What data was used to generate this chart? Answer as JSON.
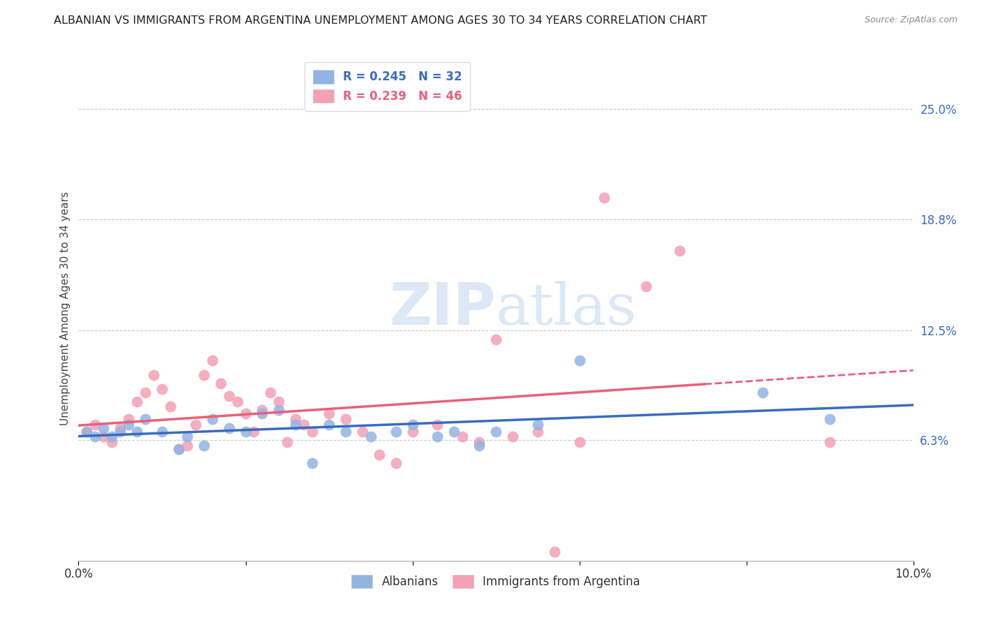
{
  "title": "ALBANIAN VS IMMIGRANTS FROM ARGENTINA UNEMPLOYMENT AMONG AGES 30 TO 34 YEARS CORRELATION CHART",
  "source": "Source: ZipAtlas.com",
  "ylabel": "Unemployment Among Ages 30 to 34 years",
  "xlim": [
    0,
    0.1
  ],
  "ylim": [
    -0.005,
    0.28
  ],
  "right_yticks": [
    0.063,
    0.125,
    0.188,
    0.25
  ],
  "right_yticklabels": [
    "6.3%",
    "12.5%",
    "18.8%",
    "25.0%"
  ],
  "albanian_color": "#92b4e3",
  "argentina_color": "#f4a0b5",
  "albanian_line_color": "#3a6cbf",
  "argentina_line_color": "#e8607a",
  "background_color": "#ffffff",
  "watermark_color": "#dce8f5",
  "grid_color": "#cccccc",
  "albanian_x": [
    0.001,
    0.002,
    0.003,
    0.004,
    0.005,
    0.006,
    0.007,
    0.008,
    0.01,
    0.012,
    0.013,
    0.015,
    0.016,
    0.018,
    0.02,
    0.022,
    0.024,
    0.026,
    0.028,
    0.03,
    0.032,
    0.035,
    0.038,
    0.04,
    0.043,
    0.045,
    0.048,
    0.05,
    0.055,
    0.06,
    0.082,
    0.09
  ],
  "albanian_y": [
    0.068,
    0.065,
    0.07,
    0.065,
    0.068,
    0.072,
    0.068,
    0.075,
    0.068,
    0.058,
    0.065,
    0.06,
    0.075,
    0.07,
    0.068,
    0.078,
    0.08,
    0.072,
    0.05,
    0.072,
    0.068,
    0.065,
    0.068,
    0.072,
    0.065,
    0.068,
    0.06,
    0.068,
    0.072,
    0.108,
    0.09,
    0.075
  ],
  "argentina_x": [
    0.001,
    0.002,
    0.003,
    0.004,
    0.005,
    0.006,
    0.007,
    0.008,
    0.009,
    0.01,
    0.011,
    0.012,
    0.013,
    0.014,
    0.015,
    0.016,
    0.017,
    0.018,
    0.019,
    0.02,
    0.021,
    0.022,
    0.023,
    0.024,
    0.025,
    0.026,
    0.027,
    0.028,
    0.03,
    0.032,
    0.034,
    0.036,
    0.038,
    0.04,
    0.043,
    0.046,
    0.048,
    0.05,
    0.052,
    0.055,
    0.057,
    0.06,
    0.063,
    0.068,
    0.072,
    0.09
  ],
  "argentina_y": [
    0.068,
    0.072,
    0.065,
    0.062,
    0.07,
    0.075,
    0.085,
    0.09,
    0.1,
    0.092,
    0.082,
    0.058,
    0.06,
    0.072,
    0.1,
    0.108,
    0.095,
    0.088,
    0.085,
    0.078,
    0.068,
    0.08,
    0.09,
    0.085,
    0.062,
    0.075,
    0.072,
    0.068,
    0.078,
    0.075,
    0.068,
    0.055,
    0.05,
    0.068,
    0.072,
    0.065,
    0.062,
    0.12,
    0.065,
    0.068,
    0.0,
    0.062,
    0.2,
    0.15,
    0.17,
    0.062
  ]
}
